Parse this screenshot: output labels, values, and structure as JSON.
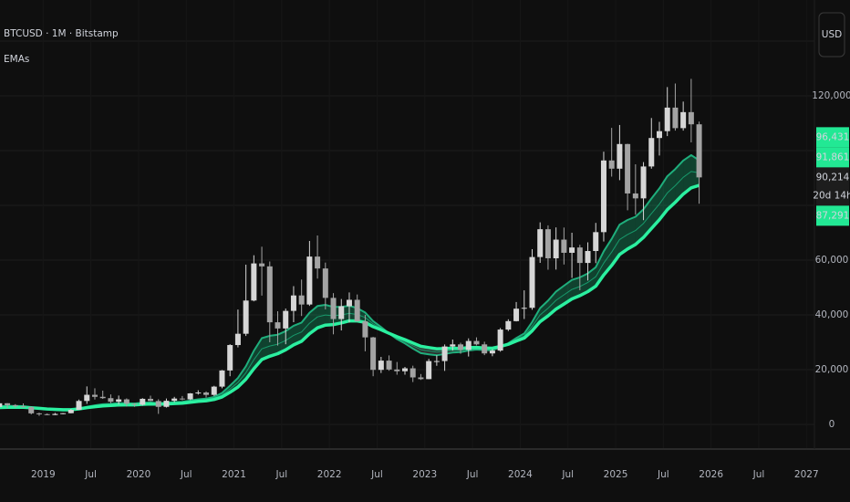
{
  "chart_data": {
    "type": "candlestick",
    "title": "BTCUSD · 1M · Bitstamp",
    "subtitle": "EMAs",
    "currency_button": "USD",
    "x": [
      "2018-07",
      "2018-08",
      "2018-09",
      "2018-10",
      "2018-11",
      "2018-12",
      "2019-01",
      "2019-02",
      "2019-03",
      "2019-04",
      "2019-05",
      "2019-06",
      "2019-07",
      "2019-08",
      "2019-09",
      "2019-10",
      "2019-11",
      "2019-12",
      "2020-01",
      "2020-02",
      "2020-03",
      "2020-04",
      "2020-05",
      "2020-06",
      "2020-07",
      "2020-08",
      "2020-09",
      "2020-10",
      "2020-11",
      "2020-12",
      "2021-01",
      "2021-02",
      "2021-03",
      "2021-04",
      "2021-05",
      "2021-06",
      "2021-07",
      "2021-08",
      "2021-09",
      "2021-10",
      "2021-11",
      "2021-12",
      "2022-01",
      "2022-02",
      "2022-03",
      "2022-04",
      "2022-05",
      "2022-06",
      "2022-07",
      "2022-08",
      "2022-09",
      "2022-10",
      "2022-11",
      "2022-12",
      "2023-01",
      "2023-02",
      "2023-03",
      "2023-04",
      "2023-05",
      "2023-06",
      "2023-07",
      "2023-08",
      "2023-09",
      "2023-10",
      "2023-11",
      "2023-12",
      "2024-01",
      "2024-02",
      "2024-03",
      "2024-04",
      "2024-05",
      "2024-06",
      "2024-07",
      "2024-08",
      "2024-09",
      "2024-10",
      "2024-11",
      "2024-12",
      "2025-01",
      "2025-02",
      "2025-03",
      "2025-04",
      "2025-05",
      "2025-06",
      "2025-07",
      "2025-08",
      "2025-09",
      "2025-10",
      "2025-11"
    ],
    "open": [
      6390,
      7730,
      7030,
      6630,
      6370,
      4040,
      3740,
      3440,
      3830,
      4100,
      5320,
      8570,
      10820,
      10080,
      9590,
      8290,
      9150,
      7550,
      7190,
      9350,
      8540,
      6410,
      8630,
      9450,
      9140,
      11340,
      11650,
      10780,
      13800,
      19700,
      28990,
      33110,
      45240,
      58800,
      57720,
      37300,
      35040,
      41460,
      47100,
      43790,
      61300,
      56950,
      46210,
      38480,
      43160,
      45510,
      37640,
      31790,
      19930,
      23300,
      20050,
      19420,
      20490,
      17170,
      16540,
      23130,
      23140,
      28470,
      29230,
      27210,
      30470,
      29230,
      25930,
      26970,
      34640,
      37720,
      42270,
      42580,
      61130,
      71290,
      60670,
      67490,
      62680,
      64620,
      58970,
      63330,
      70220,
      96400,
      93400,
      102400,
      84350,
      82550,
      94200,
      104600,
      107100,
      115700,
      108200,
      114050,
      109600
    ],
    "high": [
      8500,
      7760,
      7400,
      7680,
      6580,
      4300,
      4000,
      4200,
      4130,
      5630,
      9080,
      13880,
      13200,
      12330,
      10950,
      10540,
      9510,
      7750,
      9590,
      10500,
      9190,
      9460,
      10070,
      10380,
      11440,
      12470,
      12050,
      14100,
      19860,
      29300,
      41950,
      58350,
      61780,
      64900,
      59500,
      41330,
      42320,
      50500,
      52900,
      67000,
      69000,
      59100,
      47950,
      45800,
      48200,
      47450,
      40000,
      31970,
      24670,
      25200,
      22800,
      20990,
      21450,
      18400,
      23950,
      25250,
      29200,
      31000,
      29820,
      31430,
      31800,
      30200,
      27500,
      35200,
      38400,
      44700,
      48970,
      64000,
      73800,
      72700,
      71950,
      71900,
      70000,
      65600,
      66500,
      73600,
      99600,
      108300,
      109350,
      102500,
      95000,
      95800,
      111900,
      110500,
      123200,
      124500,
      117900,
      126200,
      110600
    ],
    "low": [
      6070,
      5880,
      6120,
      6200,
      3650,
      3120,
      3350,
      3400,
      3700,
      4060,
      5320,
      7500,
      9100,
      9320,
      7710,
      7300,
      6530,
      6430,
      6850,
      8450,
      3850,
      6150,
      8100,
      8830,
      8900,
      10900,
      9820,
      10370,
      13200,
      17600,
      28130,
      32300,
      44950,
      47040,
      30000,
      28800,
      29280,
      37330,
      39600,
      43280,
      53250,
      42000,
      32900,
      34320,
      37200,
      37580,
      26700,
      17600,
      18780,
      19600,
      18150,
      18150,
      15480,
      16250,
      16500,
      21400,
      19550,
      26940,
      25810,
      24800,
      28860,
      25300,
      24900,
      26560,
      34100,
      37600,
      38500,
      41880,
      59000,
      56500,
      56550,
      58400,
      53500,
      49000,
      52550,
      58900,
      66800,
      90500,
      89200,
      78200,
      76600,
      74600,
      93400,
      98200,
      105300,
      107300,
      107300,
      103000,
      80600
    ],
    "close": [
      7730,
      7030,
      6630,
      6370,
      4040,
      3740,
      3440,
      3830,
      4100,
      5320,
      8570,
      10820,
      10080,
      9590,
      8290,
      9150,
      7550,
      7190,
      9350,
      8540,
      6410,
      8630,
      9450,
      9140,
      11340,
      11650,
      10780,
      13800,
      19700,
      28990,
      33110,
      45240,
      58800,
      57720,
      37300,
      35040,
      41460,
      47100,
      43790,
      61300,
      56950,
      46210,
      38480,
      43160,
      45510,
      37640,
      31790,
      19930,
      23300,
      20050,
      19420,
      20490,
      17170,
      16540,
      23130,
      23140,
      28470,
      29230,
      27210,
      30470,
      29230,
      25930,
      26970,
      34640,
      37720,
      42270,
      42580,
      61130,
      71290,
      60670,
      67490,
      62680,
      64620,
      58970,
      63330,
      70220,
      96400,
      93400,
      102400,
      84350,
      82550,
      94200,
      104600,
      107100,
      115700,
      108200,
      114050,
      109600,
      90214
    ],
    "up_color": "#d6d6d6",
    "down_color": "#a3a3a3",
    "last_price_label": "90,214",
    "countdown": "20d 14h",
    "series": [
      {
        "color": "#1fae7c",
        "width": 2,
        "price_label": "96,431",
        "values": [
          6680,
          6730,
          6720,
          6670,
          6280,
          5900,
          5530,
          5280,
          5100,
          5130,
          5650,
          6430,
          6980,
          7370,
          7510,
          7760,
          7730,
          7650,
          7910,
          8000,
          7760,
          7890,
          8120,
          8270,
          8730,
          9170,
          9410,
          10070,
          11510,
          14130,
          16980,
          21220,
          26860,
          31490,
          32360,
          32760,
          34070,
          36020,
          37190,
          40810,
          43230,
          43680,
          42900,
          42940,
          43330,
          42480,
          40880,
          37740,
          35570,
          33240,
          31170,
          29570,
          27710,
          26030,
          25600,
          25230,
          25720,
          26250,
          26390,
          27000,
          27330,
          27120,
          27100,
          28230,
          29650,
          31540,
          33200,
          37390,
          42480,
          45210,
          48550,
          50670,
          52760,
          53690,
          55140,
          57400,
          63250,
          67770,
          72960,
          74670,
          75850,
          78600,
          82500,
          86190,
          90620,
          93260,
          96380,
          98360,
          96431
        ]
      },
      {
        "color": "#189a6c",
        "width": 1,
        "price_label": "91,861",
        "values": [
          6420,
          6490,
          6500,
          6480,
          6180,
          5890,
          5590,
          5390,
          5240,
          5250,
          5660,
          6280,
          6730,
          7070,
          7210,
          7430,
          7440,
          7400,
          7630,
          7730,
          7560,
          7680,
          7890,
          8030,
          8420,
          8800,
          9020,
          9590,
          10780,
          12940,
          15330,
          18870,
          23590,
          27590,
          28640,
          29290,
          30650,
          32520,
          33770,
          36980,
          39260,
          39970,
          39680,
          40000,
          40580,
          40140,
          39070,
          36720,
          35080,
          33260,
          31600,
          30280,
          28730,
          27290,
          26830,
          26430,
          26710,
          27050,
          27090,
          27510,
          27730,
          27530,
          27470,
          28340,
          29470,
          31000,
          32370,
          35800,
          40010,
          42420,
          45340,
          47330,
          49300,
          50360,
          51820,
          53930,
          58920,
          62930,
          67520,
          69380,
          70800,
          73450,
          77040,
          80480,
          84540,
          87200,
          90240,
          92380,
          91861
        ]
      },
      {
        "color": "#2bf0a0",
        "width": 3.5,
        "price_label": "87,291",
        "values": [
          6160,
          6240,
          6270,
          6280,
          6080,
          5870,
          5650,
          5490,
          5370,
          5370,
          5660,
          6120,
          6480,
          6760,
          6900,
          7100,
          7140,
          7140,
          7340,
          7450,
          7360,
          7470,
          7650,
          7780,
          8100,
          8420,
          8630,
          9100,
          10050,
          11750,
          13670,
          16510,
          20320,
          23690,
          24910,
          25820,
          27230,
          29020,
          30350,
          33140,
          35280,
          36260,
          36460,
          37060,
          37820,
          37800,
          37260,
          35700,
          34580,
          33270,
          32020,
          30980,
          29740,
          28550,
          28060,
          27620,
          27700,
          27840,
          27780,
          28020,
          28130,
          27930,
          27840,
          28450,
          29280,
          30450,
          31540,
          34200,
          37540,
          39620,
          42130,
          43980,
          45840,
          47020,
          48490,
          50450,
          54590,
          58080,
          62070,
          64080,
          65740,
          68300,
          71570,
          74770,
          78450,
          81130,
          84090,
          86390,
          87291
        ]
      }
    ],
    "band_color": "#17c985",
    "band_bear_color": "#8a8a8a",
    "xlim": [
      "2018-07",
      "2027-02"
    ],
    "xticks": [
      {
        "value": "2019-01",
        "label": "2019"
      },
      {
        "value": "2019-07",
        "label": "Jul"
      },
      {
        "value": "2020-01",
        "label": "2020"
      },
      {
        "value": "2020-07",
        "label": "Jul"
      },
      {
        "value": "2021-01",
        "label": "2021"
      },
      {
        "value": "2021-07",
        "label": "Jul"
      },
      {
        "value": "2022-01",
        "label": "2022"
      },
      {
        "value": "2022-07",
        "label": "Jul"
      },
      {
        "value": "2023-01",
        "label": "2023"
      },
      {
        "value": "2023-07",
        "label": "Jul"
      },
      {
        "value": "2024-01",
        "label": "2024"
      },
      {
        "value": "2024-07",
        "label": "Jul"
      },
      {
        "value": "2025-01",
        "label": "2025"
      },
      {
        "value": "2025-07",
        "label": "Jul"
      },
      {
        "value": "2026-01",
        "label": "2026"
      },
      {
        "value": "2026-07",
        "label": "Jul"
      },
      {
        "value": "2027-01",
        "label": "2027"
      }
    ],
    "ylim": [
      -9000,
      155000
    ],
    "yticks": [
      0,
      {
        "value": 20000,
        "label": "20,000"
      },
      {
        "value": 40000,
        "label": "40,000"
      },
      {
        "value": 60000,
        "label": "60,000"
      },
      {
        "value": 120000,
        "label": "120,000"
      }
    ],
    "ygrid": [
      0,
      20000,
      40000,
      60000,
      80000,
      100000,
      120000,
      140000
    ],
    "grid": true
  }
}
